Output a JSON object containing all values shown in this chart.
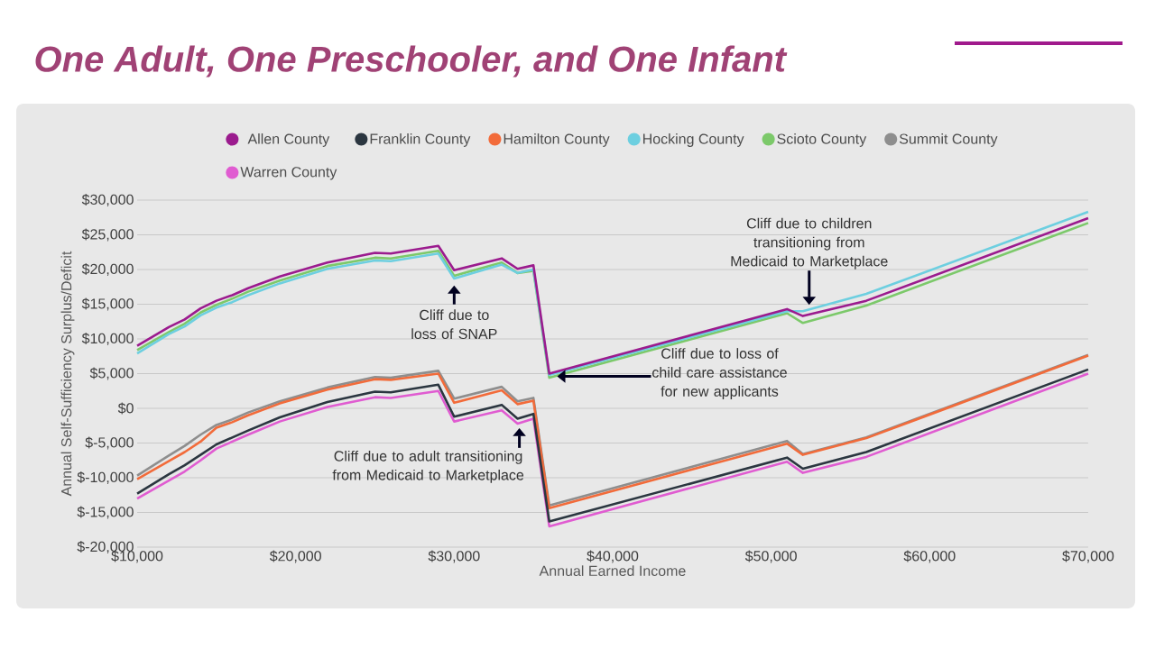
{
  "chart_data": {
    "type": "line",
    "title": "One Adult, One Preschooler, and One Infant",
    "xlabel": "Annual Earned Income",
    "ylabel": "Annual Self-Sufficiency Surplus/Deficit",
    "x": [
      10000,
      12000,
      13000,
      14000,
      15000,
      16000,
      17000,
      19000,
      22000,
      25000,
      26000,
      29000,
      30000,
      33000,
      34000,
      35000,
      36000,
      51000,
      52000,
      56000,
      70000
    ],
    "series": [
      {
        "name": "Allen County",
        "color": "#9b1b8e",
        "values": [
          9000,
          11700,
          12800,
          14400,
          15500,
          16300,
          17300,
          19000,
          21000,
          22400,
          22300,
          23400,
          19900,
          21600,
          20100,
          20600,
          5000,
          14300,
          13300,
          15500,
          27400
        ]
      },
      {
        "name": "Franklin County",
        "color": "#2b3640",
        "values": [
          -12300,
          -9500,
          -8200,
          -6700,
          -5200,
          -4200,
          -3200,
          -1300,
          900,
          2400,
          2300,
          3400,
          -1200,
          500,
          -1500,
          -800,
          -16300,
          -7100,
          -8700,
          -6300,
          5600
        ]
      },
      {
        "name": "Hamilton County",
        "color": "#f26b3a",
        "values": [
          -10200,
          -7600,
          -6300,
          -4800,
          -2800,
          -2000,
          -1000,
          700,
          2700,
          4200,
          4100,
          5000,
          800,
          2600,
          600,
          1100,
          -14400,
          -5100,
          -6700,
          -4300,
          7600
        ]
      },
      {
        "name": "Hocking County",
        "color": "#6dcfe0",
        "values": [
          7900,
          10700,
          11800,
          13400,
          14500,
          15300,
          16300,
          18000,
          20100,
          21300,
          21200,
          22300,
          18700,
          20700,
          19500,
          20000,
          4800,
          14000,
          14000,
          16500,
          28300
        ]
      },
      {
        "name": "Scioto County",
        "color": "#7cc96a",
        "values": [
          8400,
          11000,
          12200,
          13800,
          14900,
          15800,
          16800,
          18400,
          20500,
          21700,
          21600,
          22700,
          19100,
          21000,
          19500,
          19800,
          4400,
          13700,
          12300,
          14800,
          26700
        ]
      },
      {
        "name": "Summit County",
        "color": "#8e8e8e",
        "values": [
          -9700,
          -6800,
          -5400,
          -3800,
          -2400,
          -1600,
          -600,
          1000,
          3000,
          4500,
          4400,
          5400,
          1400,
          3100,
          1000,
          1500,
          -14000,
          -4700,
          -6600,
          -4200,
          7700
        ]
      },
      {
        "name": "Warren County",
        "color": "#e05cd1",
        "values": [
          -13000,
          -10400,
          -9100,
          -7500,
          -5800,
          -4800,
          -3800,
          -1900,
          200,
          1600,
          1500,
          2500,
          -1900,
          -300,
          -2200,
          -1500,
          -17000,
          -7700,
          -9300,
          -7000,
          5000
        ]
      }
    ],
    "xlim": [
      10000,
      70000
    ],
    "ylim": [
      -20000,
      30000
    ],
    "xticks": [
      {
        "value": 10000,
        "label": "$10,000"
      },
      {
        "value": 20000,
        "label": "$20,000"
      },
      {
        "value": 30000,
        "label": "$30,000"
      },
      {
        "value": 40000,
        "label": "$40,000"
      },
      {
        "value": 50000,
        "label": "$50,000"
      },
      {
        "value": 60000,
        "label": "$60,000"
      },
      {
        "value": 70000,
        "label": "$70,000"
      }
    ],
    "yticks": [
      {
        "value": -20000,
        "label": "$-20,000"
      },
      {
        "value": -15000,
        "label": "$-15,000"
      },
      {
        "value": -10000,
        "label": "$-10,000"
      },
      {
        "value": -5000,
        "label": "$-5,000"
      },
      {
        "value": 0,
        "label": "$0"
      },
      {
        "value": 5000,
        "label": "$5,000"
      },
      {
        "value": 10000,
        "label": "$10,000"
      },
      {
        "value": 15000,
        "label": "$15,000"
      },
      {
        "value": 20000,
        "label": "$20,000"
      },
      {
        "value": 25000,
        "label": "$25,000"
      },
      {
        "value": 30000,
        "label": "$30,000"
      }
    ],
    "annotations": [
      {
        "text": "Cliff due to loss of SNAP",
        "x": 30000,
        "y": 19000
      },
      {
        "text": "Cliff due to children transitioning from Medicaid to Marketplace",
        "x": 52000,
        "y": 14000
      },
      {
        "text": "Cliff due to loss of child care assistance for new applicants",
        "x": 36500,
        "y": 4600
      },
      {
        "text": "Cliff due to adult transitioning from Medicaid to Marketplace",
        "x": 34000,
        "y": -1800
      }
    ],
    "grid": "y",
    "legend": "top",
    "marker": "none",
    "line_style": "solid"
  }
}
